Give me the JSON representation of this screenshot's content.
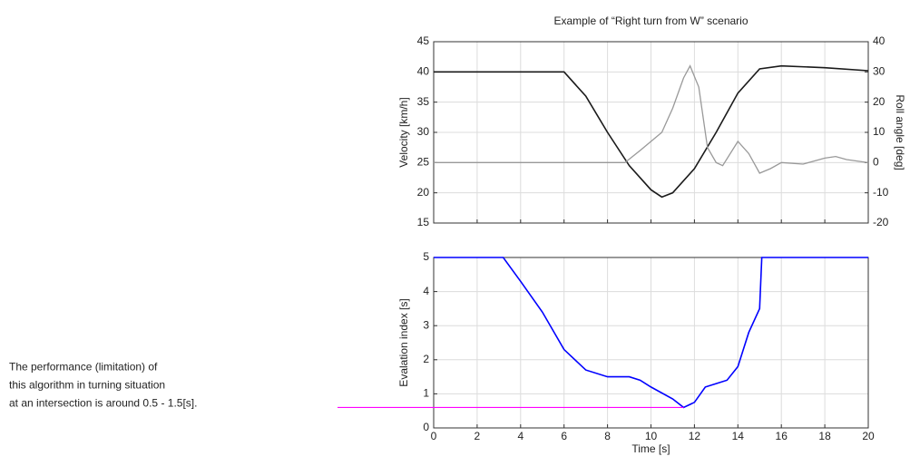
{
  "chart_data": [
    {
      "type": "line",
      "title": "Example of “Right turn from W” scenario",
      "y_label": "Velocity [km/h]",
      "y2_label": "Roll angle [deg]",
      "xlim": [
        0,
        20
      ],
      "xticks": [
        0,
        2,
        4,
        6,
        8,
        10,
        12,
        14,
        16,
        18,
        20
      ],
      "ylim": [
        15,
        45
      ],
      "yticks": [
        15,
        20,
        25,
        30,
        35,
        40,
        45
      ],
      "y2lim": [
        -20,
        40
      ],
      "y2ticks": [
        -20,
        -10,
        0,
        10,
        20,
        30,
        40
      ],
      "grid": true,
      "series": [
        {
          "name": "Velocity",
          "color": "#1a1a1a",
          "x": [
            0,
            2,
            4,
            6,
            7,
            8,
            9,
            10,
            10.5,
            11,
            12,
            13,
            14,
            15,
            16,
            18,
            20
          ],
          "values": [
            40,
            40,
            40,
            40,
            36,
            30,
            24.5,
            20.5,
            19.3,
            20,
            24,
            30,
            36.5,
            40.5,
            41,
            40.7,
            40.2
          ]
        },
        {
          "name": "Roll angle",
          "color": "#999999",
          "axis": "y2",
          "x": [
            0,
            8.8,
            9.5,
            10.5,
            11,
            11.5,
            11.8,
            12.2,
            12.6,
            13,
            13.3,
            14,
            14.5,
            15,
            15.5,
            16,
            17,
            18,
            18.5,
            19,
            20
          ],
          "values": [
            0,
            0,
            4,
            10,
            18,
            28,
            32,
            25,
            5,
            0,
            -1,
            7,
            3,
            -3.5,
            -2,
            0,
            -0.5,
            1.5,
            2,
            1,
            0
          ]
        }
      ]
    },
    {
      "type": "line",
      "x_label": "Time [s]",
      "y_label": "Evalation index [s]",
      "xlim": [
        0,
        20
      ],
      "xticks": [
        0,
        2,
        4,
        6,
        8,
        10,
        12,
        14,
        16,
        18,
        20
      ],
      "ylim": [
        0,
        5
      ],
      "yticks": [
        0,
        1,
        2,
        3,
        4,
        5
      ],
      "grid": true,
      "series": [
        {
          "name": "Evaluation index",
          "color": "#0000ff",
          "x": [
            0,
            3.2,
            4,
            5,
            6,
            7,
            8,
            9,
            9.5,
            10,
            11,
            11.5,
            12,
            12.5,
            13,
            13.5,
            14,
            14.5,
            15,
            15.1,
            20
          ],
          "values": [
            5,
            5,
            4.3,
            3.4,
            2.3,
            1.7,
            1.5,
            1.5,
            1.4,
            1.2,
            0.85,
            0.6,
            0.75,
            1.2,
            1.3,
            1.4,
            1.8,
            2.8,
            3.5,
            5,
            5
          ]
        }
      ],
      "annotation": {
        "lines": [
          "The performance (limitation) of",
          "this algorithm in turning situation",
          "at an intersection is around 0.5 - 1.5[s]."
        ],
        "value": 0.6,
        "color": "#ff00ff"
      }
    }
  ]
}
